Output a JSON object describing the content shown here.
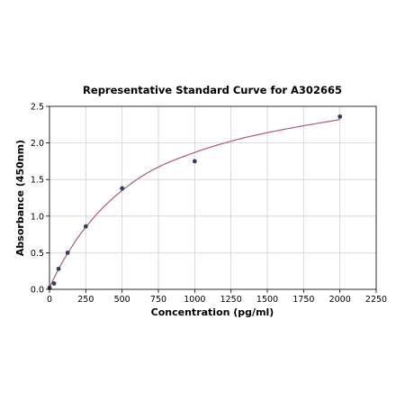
{
  "chart_data": {
    "type": "scatter",
    "title": "Representative Standard Curve for A302665",
    "xlabel": "Concentration (pg/ml)",
    "ylabel": "Absorbance (450nm)",
    "xlim": [
      0,
      2250
    ],
    "ylim": [
      0,
      2.5
    ],
    "xticks": [
      0,
      250,
      500,
      750,
      1000,
      1250,
      1500,
      1750,
      2000,
      2250
    ],
    "yticks": [
      0.0,
      0.5,
      1.0,
      1.5,
      2.0,
      2.5
    ],
    "xtick_labels": [
      "0",
      "250",
      "500",
      "750",
      "1000",
      "1250",
      "1500",
      "1750",
      "2000",
      "2250"
    ],
    "ytick_labels": [
      "0.0",
      "0.5",
      "1.0",
      "1.5",
      "2.0",
      "2.5"
    ],
    "grid": true,
    "legend": "none",
    "points": [
      {
        "x": 0,
        "y": 0.02
      },
      {
        "x": 31.25,
        "y": 0.08
      },
      {
        "x": 62.5,
        "y": 0.28
      },
      {
        "x": 125,
        "y": 0.5
      },
      {
        "x": 250,
        "y": 0.86
      },
      {
        "x": 500,
        "y": 1.38
      },
      {
        "x": 1000,
        "y": 1.75
      },
      {
        "x": 2000,
        "y": 2.36
      }
    ],
    "fit_curve": {
      "type": "four-parameter-logistic",
      "x": [
        0,
        25,
        50,
        100,
        150,
        200,
        250,
        350,
        500,
        700,
        1000,
        1300,
        1600,
        2000
      ],
      "y": [
        0.02,
        0.13,
        0.23,
        0.41,
        0.57,
        0.72,
        0.85,
        1.08,
        1.35,
        1.62,
        1.87,
        2.05,
        2.18,
        2.32
      ]
    },
    "colors": {
      "points": "#2e3f6e",
      "curve": "#b05a6e",
      "grid": "#d0d0d0"
    }
  }
}
